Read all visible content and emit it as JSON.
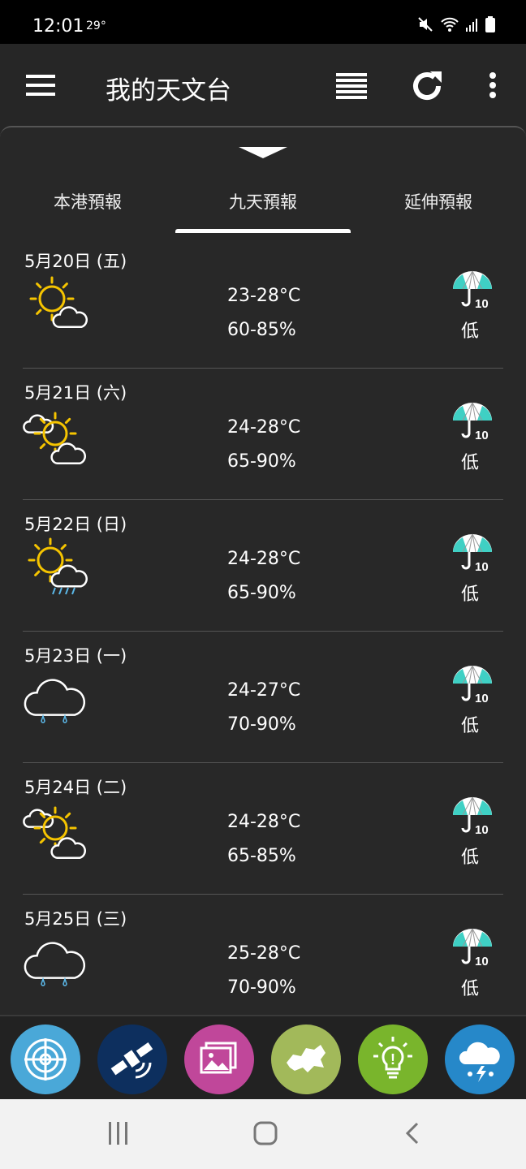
{
  "status_bar": {
    "time": "12:01",
    "temperature": "29°"
  },
  "app_bar": {
    "title": "我的天文台"
  },
  "tabs": [
    {
      "label": "本港預報"
    },
    {
      "label": "九天預報",
      "active": true
    },
    {
      "label": "延伸預報"
    }
  ],
  "forecast": [
    {
      "date": "5月20日 (五)",
      "icon": "sunny-periods",
      "temp": "23-28°C",
      "humidity": "60-85%",
      "psr": "低"
    },
    {
      "date": "5月21日 (六)",
      "icon": "sunny-intervals",
      "temp": "24-28°C",
      "humidity": "65-90%",
      "psr": "低"
    },
    {
      "date": "5月22日 (日)",
      "icon": "sunny-showers",
      "temp": "24-28°C",
      "humidity": "65-90%",
      "psr": "低"
    },
    {
      "date": "5月23日 (一)",
      "icon": "light-rain",
      "temp": "24-27°C",
      "humidity": "70-90%",
      "psr": "低"
    },
    {
      "date": "5月24日 (二)",
      "icon": "sunny-intervals",
      "temp": "24-28°C",
      "humidity": "65-85%",
      "psr": "低"
    },
    {
      "date": "5月25日 (三)",
      "icon": "light-rain",
      "temp": "25-28°C",
      "humidity": "70-90%",
      "psr": "低"
    }
  ],
  "psr_icon_label": "10",
  "shortcuts": [
    {
      "name": "radar",
      "color": "#4aa8d8"
    },
    {
      "name": "satellite",
      "color": "#0d2f5e"
    },
    {
      "name": "images",
      "color": "#c0479a"
    },
    {
      "name": "hk-map",
      "color": "#a2b95a"
    },
    {
      "name": "tips",
      "color": "#79b52c"
    },
    {
      "name": "thunderstorm",
      "color": "#2688c9"
    }
  ]
}
